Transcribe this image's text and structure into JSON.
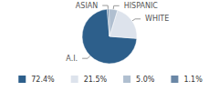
{
  "chart_data": {
    "type": "pie",
    "categories": [
      "A.I.",
      "WHITE",
      "HISPANIC",
      "ASIAN"
    ],
    "values": [
      72.4,
      21.5,
      5.0,
      1.1
    ],
    "value_labels": [
      "72.4%",
      "21.5%",
      "5.0%",
      "1.1%"
    ],
    "colors": [
      "#2d5f8b",
      "#dde3ec",
      "#b0bfd0",
      "#6a87a6"
    ],
    "legend": "bottom"
  }
}
